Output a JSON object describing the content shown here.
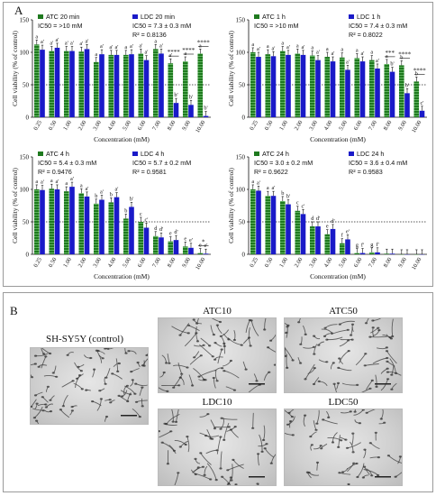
{
  "panel_a_label": "A",
  "panel_b_label": "B",
  "colors": {
    "atc": "#1f7a1f",
    "ldc": "#1a1ac8"
  },
  "chart_data": [
    {
      "type": "bar",
      "categories": [
        "0.25",
        "0.50",
        "1.00",
        "2.00",
        "3.00",
        "4.00",
        "5.00",
        "6.00",
        "7.00",
        "8.00",
        "9.00",
        "10.00"
      ],
      "series": [
        {
          "name": "ATC 20 min",
          "values": [
            112,
            102,
            102,
            101,
            85,
            96,
            96,
            98,
            105,
            83,
            86,
            98
          ],
          "labels": [
            "a",
            "a'",
            "a'",
            "a'",
            "a",
            "a'",
            "a",
            "a'",
            "a",
            "a'",
            "a",
            "a"
          ]
        },
        {
          "name": "LDC 20 min",
          "values": [
            104,
            107,
            102,
            105,
            97,
            96,
            97,
            88,
            98,
            22,
            19,
            2
          ],
          "labels": [
            "a'",
            "a'",
            "a'",
            "a'",
            "a'",
            "a'",
            "a'",
            "a'",
            "a'",
            "b'",
            "b'",
            "b'"
          ]
        }
      ],
      "ic50": [
        "IC50 = >10 mM",
        "IC50 = 7.3 ± 0.3 mM"
      ],
      "r2": "R² = 0.8136",
      "sig": [
        "****",
        "****",
        "****"
      ],
      "ylim": [
        0,
        150
      ],
      "yticks": [
        0,
        50,
        100,
        150
      ],
      "ref_line": 50,
      "ylabel": "Cell viability (% of control)",
      "xlabel": "Concentration (mM)"
    },
    {
      "type": "bar",
      "categories": [
        "0.25",
        "0.50",
        "1.00",
        "2.00",
        "3.00",
        "4.00",
        "5.00",
        "6.00",
        "7.00",
        "8.00",
        "9.00",
        "10.00"
      ],
      "series": [
        {
          "name": "ATC 1 h",
          "values": [
            100,
            97,
            102,
            98,
            95,
            93,
            92,
            91,
            88,
            82,
            80,
            55
          ],
          "labels": [
            "a",
            "a",
            "a",
            "a",
            "a",
            "a",
            "a",
            "a",
            "a",
            "a",
            "b",
            "b"
          ]
        },
        {
          "name": "LDC 1 h",
          "values": [
            93,
            94,
            96,
            96,
            88,
            86,
            73,
            86,
            75,
            70,
            37,
            10
          ],
          "labels": [
            "a'",
            "a'",
            "a'",
            "a'",
            "a'",
            "a'",
            "a'",
            "a'",
            "a'",
            "b'",
            "b'",
            "c'"
          ]
        }
      ],
      "ic50": [
        "IC50 = >10 mM",
        "IC50 = 7.4 ± 0.3 mM"
      ],
      "r2": "R² = 0.8022",
      "sig": [
        "***",
        "****",
        "****"
      ],
      "ylim": [
        0,
        150
      ],
      "yticks": [
        0,
        50,
        100,
        150
      ],
      "ref_line": 50,
      "ylabel": "Cell viability (% of control)",
      "xlabel": "Concentration (mM)"
    },
    {
      "type": "bar",
      "categories": [
        "0.25",
        "0.50",
        "1.00",
        "2.00",
        "3.00",
        "4.00",
        "5.00",
        "6.00",
        "7.00",
        "8.00",
        "9.00",
        "10.00"
      ],
      "series": [
        {
          "name": "ATC 4 h",
          "values": [
            100,
            101,
            97,
            94,
            78,
            80,
            55,
            50,
            28,
            20,
            12,
            2
          ],
          "labels": [
            "a",
            "a",
            "a",
            "a",
            "b",
            "b",
            "b",
            "c",
            "d",
            "e",
            "e",
            "e"
          ]
        },
        {
          "name": "LDC 4 h",
          "values": [
            99,
            100,
            104,
            89,
            84,
            88,
            73,
            41,
            26,
            22,
            10,
            1
          ],
          "labels": [
            "a'",
            "a'",
            "a'",
            "a'",
            "a'",
            "a'",
            "b'",
            "c'",
            "d'",
            "d'",
            "e'",
            "e'"
          ]
        }
      ],
      "ic50": [
        "IC50 = 5.4 ± 0.3 mM",
        "IC50 = 5.7 ± 0.2 mM"
      ],
      "r2": [
        "R² = 0.9476",
        "R² = 0.9581"
      ],
      "sig": [
        "*"
      ],
      "ylim": [
        0,
        150
      ],
      "yticks": [
        0,
        50,
        100,
        150
      ],
      "ref_line": 50,
      "ylabel": "Cell viability (% of control)",
      "xlabel": "Concentration (mM)"
    },
    {
      "type": "bar",
      "categories": [
        "0.25",
        "0.50",
        "1.00",
        "2.00",
        "3.00",
        "4.00",
        "5.00",
        "6.00",
        "7.00",
        "8.00",
        "9.00",
        "10.00"
      ],
      "series": [
        {
          "name": "ATC 24 h",
          "values": [
            100,
            90,
            82,
            67,
            43,
            31,
            17,
            2,
            3,
            1,
            0,
            0
          ],
          "labels": [
            "a",
            "a",
            "b",
            "c",
            "d",
            "e",
            "f",
            "g",
            "g",
            "",
            "",
            ""
          ]
        },
        {
          "name": "LDC 24 h",
          "values": [
            98,
            90,
            77,
            62,
            43,
            39,
            23,
            2,
            3,
            1,
            0,
            0
          ],
          "labels": [
            "a'",
            "a'",
            "b'",
            "c'",
            "d'",
            "d'",
            "e'",
            "f'",
            "f'",
            "",
            "",
            ""
          ]
        }
      ],
      "ic50": [
        "IC50 = 3.0 ± 0.2 mM",
        "IC50 = 3.6 ± 0.4 mM"
      ],
      "r2": [
        "R² = 0.9622",
        "R² = 0.9583"
      ],
      "sig": [],
      "ylim": [
        0,
        150
      ],
      "yticks": [
        0,
        50,
        100,
        150
      ],
      "ref_line": 50,
      "ylabel": "Cell viability (% of control)",
      "xlabel": "Concentration (mM)"
    }
  ],
  "micrographs": {
    "control": "SH-SY5Y (control)",
    "atc10": "ATC10",
    "atc50": "ATC50",
    "ldc10": "LDC10",
    "ldc50": "LDC50"
  }
}
